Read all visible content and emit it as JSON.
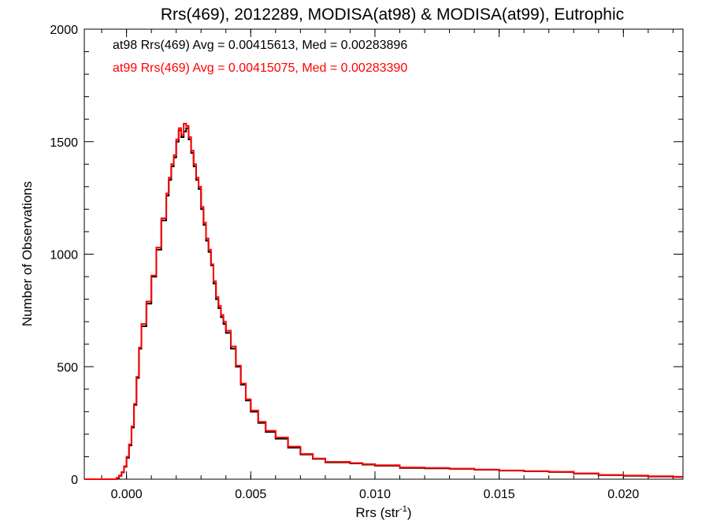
{
  "chart_data": {
    "type": "line",
    "title": "Rrs(469), 2012289, MODISA(at98) & MODISA(at99), Eutrophic",
    "xlabel_main": "Rrs (str",
    "xlabel_sup": "-1",
    "xlabel_close": ")",
    "ylabel": "Number of Observations",
    "xlim": [
      -0.0017,
      0.0224
    ],
    "ylim": [
      0,
      2000
    ],
    "x_ticks": [
      {
        "value": 0.0,
        "label": "0.000"
      },
      {
        "value": 0.005,
        "label": "0.005"
      },
      {
        "value": 0.01,
        "label": "0.010"
      },
      {
        "value": 0.015,
        "label": "0.015"
      },
      {
        "value": 0.02,
        "label": "0.020"
      }
    ],
    "y_ticks": [
      {
        "value": 0,
        "label": "0"
      },
      {
        "value": 500,
        "label": "500"
      },
      {
        "value": 1000,
        "label": "1000"
      },
      {
        "value": 1500,
        "label": "1500"
      },
      {
        "value": 2000,
        "label": "2000"
      }
    ],
    "legend": [
      {
        "text": "at98 Rrs(469) Avg = 0.00415613, Med = 0.00283896",
        "color": "#000000"
      },
      {
        "text": "at99 Rrs(469) Avg = 0.00415075, Med = 0.00283390",
        "color": "#ff0000"
      }
    ],
    "series": [
      {
        "color": "#000000",
        "style": "step",
        "points": [
          [
            -0.0017,
            0
          ],
          [
            -0.0006,
            0
          ],
          [
            -0.0004,
            5
          ],
          [
            -0.0003,
            15
          ],
          [
            -0.0002,
            30
          ],
          [
            -0.0001,
            55
          ],
          [
            0.0,
            95
          ],
          [
            0.0001,
            150
          ],
          [
            0.0002,
            230
          ],
          [
            0.0003,
            330
          ],
          [
            0.0004,
            450
          ],
          [
            0.0005,
            580
          ],
          [
            0.0006,
            680
          ],
          [
            0.0008,
            780
          ],
          [
            0.001,
            900
          ],
          [
            0.0012,
            1020
          ],
          [
            0.0014,
            1150
          ],
          [
            0.0016,
            1260
          ],
          [
            0.0017,
            1330
          ],
          [
            0.0018,
            1390
          ],
          [
            0.0019,
            1430
          ],
          [
            0.002,
            1500
          ],
          [
            0.0021,
            1550
          ],
          [
            0.0022,
            1520
          ],
          [
            0.0023,
            1545
          ],
          [
            0.0024,
            1560
          ],
          [
            0.0025,
            1510
          ],
          [
            0.0026,
            1450
          ],
          [
            0.0027,
            1390
          ],
          [
            0.0028,
            1330
          ],
          [
            0.0029,
            1290
          ],
          [
            0.003,
            1200
          ],
          [
            0.0031,
            1130
          ],
          [
            0.0032,
            1060
          ],
          [
            0.0033,
            1010
          ],
          [
            0.0034,
            950
          ],
          [
            0.0035,
            870
          ],
          [
            0.0036,
            800
          ],
          [
            0.0037,
            760
          ],
          [
            0.0038,
            720
          ],
          [
            0.0039,
            690
          ],
          [
            0.004,
            650
          ],
          [
            0.0042,
            580
          ],
          [
            0.0044,
            500
          ],
          [
            0.0046,
            420
          ],
          [
            0.0048,
            350
          ],
          [
            0.005,
            300
          ],
          [
            0.0053,
            250
          ],
          [
            0.0056,
            210
          ],
          [
            0.006,
            180
          ],
          [
            0.0065,
            140
          ],
          [
            0.007,
            110
          ],
          [
            0.0075,
            90
          ],
          [
            0.008,
            75
          ],
          [
            0.009,
            70
          ],
          [
            0.0095,
            65
          ],
          [
            0.01,
            60
          ],
          [
            0.011,
            50
          ],
          [
            0.012,
            48
          ],
          [
            0.013,
            46
          ],
          [
            0.014,
            42
          ],
          [
            0.015,
            38
          ],
          [
            0.016,
            35
          ],
          [
            0.017,
            32
          ],
          [
            0.018,
            25
          ],
          [
            0.019,
            18
          ],
          [
            0.02,
            15
          ],
          [
            0.021,
            12
          ],
          [
            0.022,
            10
          ],
          [
            0.0224,
            10
          ]
        ]
      },
      {
        "color": "#ff0000",
        "style": "step",
        "points": [
          [
            -0.0017,
            0
          ],
          [
            -0.0006,
            0
          ],
          [
            -0.0004,
            6
          ],
          [
            -0.0003,
            16
          ],
          [
            -0.0002,
            32
          ],
          [
            -0.0001,
            58
          ],
          [
            0.0,
            100
          ],
          [
            0.0001,
            155
          ],
          [
            0.0002,
            235
          ],
          [
            0.0003,
            335
          ],
          [
            0.0004,
            455
          ],
          [
            0.0005,
            585
          ],
          [
            0.0006,
            690
          ],
          [
            0.0008,
            790
          ],
          [
            0.001,
            905
          ],
          [
            0.0012,
            1030
          ],
          [
            0.0014,
            1160
          ],
          [
            0.0016,
            1270
          ],
          [
            0.0017,
            1340
          ],
          [
            0.0018,
            1400
          ],
          [
            0.0019,
            1440
          ],
          [
            0.002,
            1510
          ],
          [
            0.0021,
            1560
          ],
          [
            0.0022,
            1530
          ],
          [
            0.0023,
            1580
          ],
          [
            0.0024,
            1570
          ],
          [
            0.0025,
            1520
          ],
          [
            0.0026,
            1460
          ],
          [
            0.0027,
            1400
          ],
          [
            0.0028,
            1340
          ],
          [
            0.0029,
            1300
          ],
          [
            0.003,
            1210
          ],
          [
            0.0031,
            1140
          ],
          [
            0.0032,
            1070
          ],
          [
            0.0033,
            1020
          ],
          [
            0.0034,
            955
          ],
          [
            0.0035,
            880
          ],
          [
            0.0036,
            810
          ],
          [
            0.0037,
            770
          ],
          [
            0.0038,
            730
          ],
          [
            0.0039,
            700
          ],
          [
            0.004,
            660
          ],
          [
            0.0042,
            590
          ],
          [
            0.0044,
            505
          ],
          [
            0.0046,
            425
          ],
          [
            0.0048,
            355
          ],
          [
            0.005,
            305
          ],
          [
            0.0053,
            255
          ],
          [
            0.0056,
            215
          ],
          [
            0.006,
            185
          ],
          [
            0.0065,
            145
          ],
          [
            0.007,
            112
          ],
          [
            0.0075,
            92
          ],
          [
            0.008,
            77
          ],
          [
            0.009,
            72
          ],
          [
            0.0095,
            67
          ],
          [
            0.01,
            62
          ],
          [
            0.011,
            52
          ],
          [
            0.012,
            50
          ],
          [
            0.013,
            47
          ],
          [
            0.014,
            43
          ],
          [
            0.015,
            39
          ],
          [
            0.016,
            36
          ],
          [
            0.017,
            33
          ],
          [
            0.018,
            26
          ],
          [
            0.019,
            19
          ],
          [
            0.02,
            16
          ],
          [
            0.021,
            13
          ],
          [
            0.022,
            11
          ],
          [
            0.0224,
            11
          ]
        ]
      }
    ]
  }
}
